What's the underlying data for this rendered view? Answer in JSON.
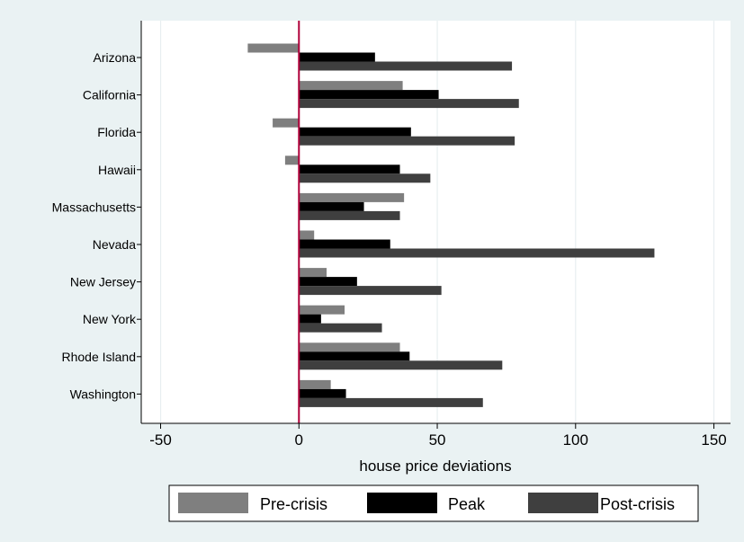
{
  "chart_data": {
    "type": "bar",
    "orientation": "horizontal",
    "categories": [
      "Arizona",
      "California",
      "Florida",
      "Hawaii",
      "Massachusetts",
      "Nevada",
      "New Jersey",
      "New York",
      "Rhode Island",
      "Washington"
    ],
    "series": [
      {
        "name": "Pre-crisis",
        "color": "#7f7f7f",
        "values": [
          -18.5,
          37.5,
          -9.5,
          -5.0,
          38.0,
          5.5,
          10.0,
          16.5,
          36.5,
          11.5
        ]
      },
      {
        "name": "Peak",
        "color": "#000000",
        "values": [
          27.5,
          50.5,
          40.5,
          36.5,
          23.5,
          33.0,
          21.0,
          8.0,
          40.0,
          17.0
        ]
      },
      {
        "name": "Post-crisis",
        "color": "#3f3f3f",
        "values": [
          77.0,
          79.5,
          78.0,
          47.5,
          36.5,
          128.5,
          51.5,
          30.0,
          73.5,
          66.5
        ]
      }
    ],
    "xlabel": "house price deviations",
    "xlim": [
      -57,
      156
    ],
    "xticks": [
      -50,
      0,
      50,
      100,
      150
    ],
    "reference_line": {
      "x": 0,
      "color": "#b0003a"
    },
    "grid": true,
    "legend_position": "bottom"
  }
}
